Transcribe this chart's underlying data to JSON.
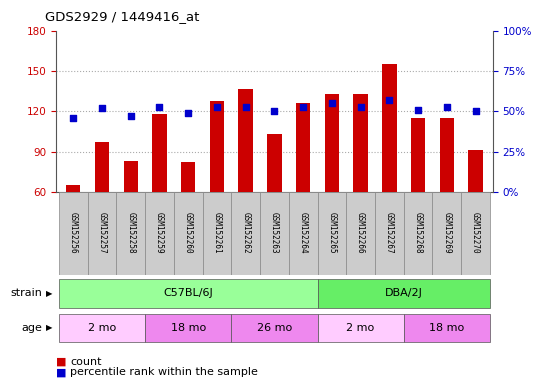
{
  "title": "GDS2929 / 1449416_at",
  "samples": [
    "GSM152256",
    "GSM152257",
    "GSM152258",
    "GSM152259",
    "GSM152260",
    "GSM152261",
    "GSM152262",
    "GSM152263",
    "GSM152264",
    "GSM152265",
    "GSM152266",
    "GSM152267",
    "GSM152268",
    "GSM152269",
    "GSM152270"
  ],
  "counts": [
    65,
    97,
    83,
    118,
    82,
    128,
    137,
    103,
    126,
    133,
    133,
    155,
    115,
    115,
    91
  ],
  "percentile_ranks": [
    46,
    52,
    47,
    53,
    49,
    53,
    53,
    50,
    53,
    55,
    53,
    57,
    51,
    53,
    50
  ],
  "ylim_left": [
    60,
    180
  ],
  "ylim_right": [
    0,
    100
  ],
  "yticks_left": [
    60,
    90,
    120,
    150,
    180
  ],
  "yticks_right": [
    0,
    25,
    50,
    75,
    100
  ],
  "bar_color": "#cc0000",
  "dot_color": "#0000cc",
  "grid_color": "#aaaaaa",
  "tick_label_color_left": "#cc0000",
  "tick_label_color_right": "#0000cc",
  "strain_groups": [
    {
      "label": "C57BL/6J",
      "start": 0,
      "end": 8,
      "color": "#99ff99"
    },
    {
      "label": "DBA/2J",
      "start": 9,
      "end": 14,
      "color": "#66ee66"
    }
  ],
  "age_groups": [
    {
      "label": "2 mo",
      "start": 0,
      "end": 2,
      "color": "#ffccff"
    },
    {
      "label": "18 mo",
      "start": 3,
      "end": 5,
      "color": "#ee88ee"
    },
    {
      "label": "26 mo",
      "start": 6,
      "end": 8,
      "color": "#ee88ee"
    },
    {
      "label": "2 mo",
      "start": 9,
      "end": 11,
      "color": "#ffccff"
    },
    {
      "label": "18 mo",
      "start": 12,
      "end": 14,
      "color": "#ee88ee"
    }
  ],
  "xticklabel_bg": "#cccccc"
}
